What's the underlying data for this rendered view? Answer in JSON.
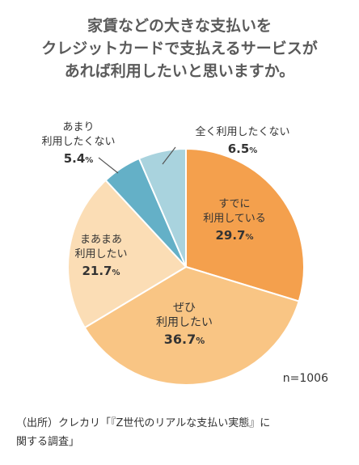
{
  "title_lines": [
    "家賃などの大きな支払いを",
    "クレジットカードで支払えるサービスが",
    "あれば利用したいと思いますか。"
  ],
  "sample_size": "n=1006",
  "source_lines": [
    "（出所）クレカリ「『Z世代のリアルな支払い実態』に",
    "関する調査」"
  ],
  "colors": {
    "already": "#f4a04d",
    "want": "#f9c584",
    "somewhat": "#fbddb5",
    "not_much": "#64b0c7",
    "not_at_all": "#a9d3de"
  },
  "chart_data": {
    "type": "pie",
    "slices": [
      {
        "label_lines": [
          "すでに",
          "利用している"
        ],
        "value": 29.7,
        "value_label": "29.7",
        "color": "#f4a04d"
      },
      {
        "label_lines": [
          "ぜひ",
          "利用したい"
        ],
        "value": 36.7,
        "value_label": "36.7",
        "color": "#f9c584"
      },
      {
        "label_lines": [
          "まあまあ",
          "利用したい"
        ],
        "value": 21.7,
        "value_label": "21.7",
        "color": "#fbddb5"
      },
      {
        "label_lines": [
          "あまり",
          "利用したくない"
        ],
        "value": 5.4,
        "value_label": "5.4",
        "color": "#64b0c7"
      },
      {
        "label_lines": [
          "全く利用したくない"
        ],
        "value": 6.5,
        "value_label": "6.5",
        "color": "#a9d3de"
      }
    ],
    "unit": "%",
    "start": "12 o'clock",
    "direction": "clockwise"
  }
}
